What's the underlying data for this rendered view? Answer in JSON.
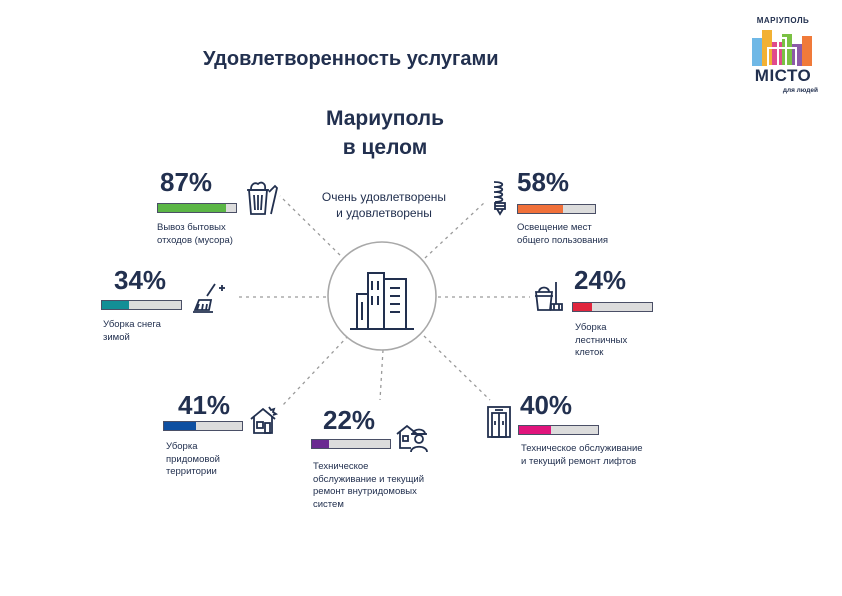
{
  "title": "Удовлетворенность услугами",
  "logo": {
    "top": "МАРІУПОЛЬ",
    "word": "МІСТО",
    "bottom": "для людей"
  },
  "chart_data": {
    "type": "bar",
    "title": "Удовлетворенность услугами",
    "subtitle_lines": [
      "Мариуполь",
      "в целом"
    ],
    "center_label_lines": [
      "Очень удовлетворены",
      "и удовлетворены"
    ],
    "ylim": [
      0,
      100
    ],
    "unit": "%",
    "items": [
      {
        "id": "waste",
        "value": 87,
        "display": "87%",
        "label_lines": [
          "Вывоз бытовых",
          "отходов (мусора)"
        ],
        "color": "#5bb646",
        "icon": "trash-bin-icon"
      },
      {
        "id": "lighting",
        "value": 58,
        "display": "58%",
        "label_lines": [
          "Освещение мест",
          "общего пользования"
        ],
        "color": "#f0703a",
        "icon": "light-bulb-icon"
      },
      {
        "id": "snow",
        "value": 34,
        "display": "34%",
        "label_lines": [
          "Уборка снега",
          "зимой"
        ],
        "color": "#128f96",
        "icon": "broom-icon"
      },
      {
        "id": "stairs",
        "value": 24,
        "display": "24%",
        "label_lines": [
          "Уборка",
          "лестничных",
          "клеток"
        ],
        "color": "#e0263e",
        "icon": "mop-bucket-icon"
      },
      {
        "id": "yard",
        "value": 41,
        "display": "41%",
        "label_lines": [
          "Уборка",
          "придомовой",
          "территории"
        ],
        "color": "#0e4fa1",
        "icon": "house-icon"
      },
      {
        "id": "systems",
        "value": 22,
        "display": "22%",
        "label_lines": [
          "Техническое",
          "обслуживание и текущий",
          "ремонт внутридомовых",
          "систем"
        ],
        "color": "#6a2a91",
        "icon": "worker-icon"
      },
      {
        "id": "elevators",
        "value": 40,
        "display": "40%",
        "label_lines": [
          "Техническое обслуживание",
          "и текущий ремонт лифтов"
        ],
        "color": "#e0147c",
        "icon": "elevator-icon"
      }
    ]
  }
}
